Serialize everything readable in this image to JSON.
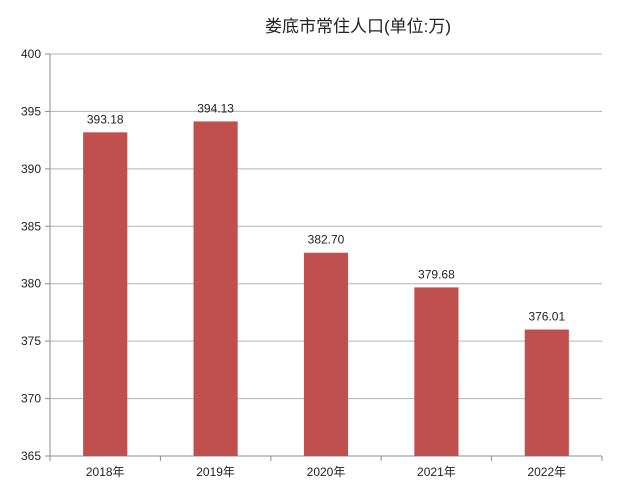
{
  "chart_data": {
    "type": "bar",
    "title": "娄底市常住人口(单位:万)",
    "xlabel": "",
    "ylabel": "",
    "categories": [
      "2018年",
      "2019年",
      "2020年",
      "2021年",
      "2022年"
    ],
    "values": [
      393.18,
      394.13,
      382.7,
      379.68,
      376.01
    ],
    "data_labels": [
      "393.18",
      "394.13",
      "382.70",
      "379.68",
      "376.01"
    ],
    "ylim": [
      365,
      400
    ],
    "yticks": [
      "365",
      "370",
      "375",
      "380",
      "385",
      "390",
      "395",
      "400"
    ],
    "grid": true,
    "legend": "none",
    "bar_color": "#c0504d",
    "grid_color": "#b3b3b3",
    "axis_color": "#8c8c8c"
  }
}
